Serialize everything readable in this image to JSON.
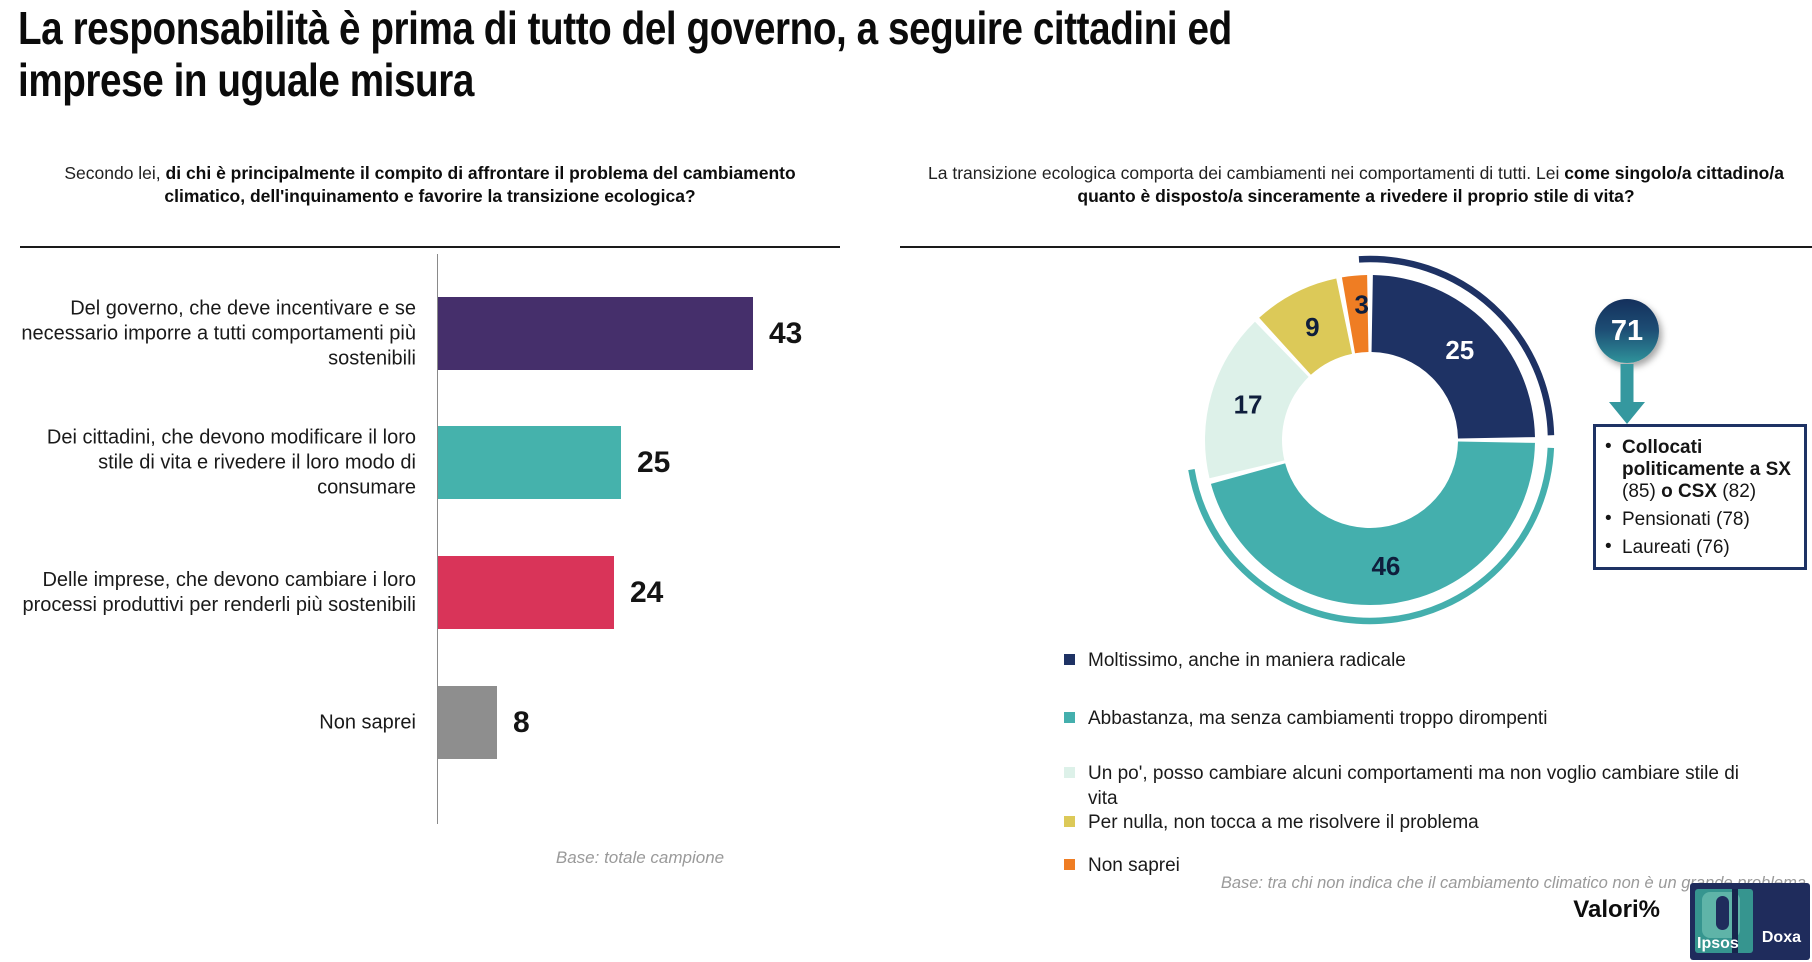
{
  "title": {
    "lines": [
      "La responsabilità è prima di tutto del governo, a seguire cittadini ed",
      "imprese in uguale misura"
    ]
  },
  "chart_data": [
    {
      "type": "bar",
      "orientation": "horizontal",
      "question_prefix": "Secondo lei, ",
      "question_bold": "di chi è principalmente il compito di affrontare il problema del cambiamento climatico, dell'inquinamento e favorire la transizione ecologica?",
      "categories": [
        "Del governo, che deve incentivare e se necessario imporre a tutti comportamenti più sostenibili",
        "Dei cittadini, che devono modificare il loro stile di vita e rivedere il loro modo di consumare",
        "Delle imprese, che devono cambiare i loro processi produttivi per renderli più sostenibili",
        "Non saprei"
      ],
      "values": [
        43,
        25,
        24,
        8
      ],
      "colors": [
        "#452F6B",
        "#45B2AC",
        "#D93459",
        "#8E8E8E"
      ],
      "xlim": [
        0,
        43
      ],
      "grid": false,
      "base_note": "Base: totale campione"
    },
    {
      "type": "pie",
      "subtype": "donut",
      "question_prefix": "La transizione ecologica comporta dei cambiamenti nei comportamenti di tutti. Lei ",
      "question_bold": "come singolo/a cittadino/a quanto è disposto/a sinceramente a rivedere il proprio stile di vita?",
      "labels": [
        "Moltissimo, anche in maniera radicale",
        "Abbastanza, ma senza cambiamenti troppo dirompenti",
        "Un po', posso cambiare alcuni comportamenti ma non voglio cambiare stile di vita",
        "Per nulla, non tocca a me risolvere il problema",
        "Non saprei"
      ],
      "values": [
        25,
        46,
        17,
        9,
        3
      ],
      "colors": [
        "#1E3264",
        "#44AFAD",
        "#DDF1E9",
        "#DCC958",
        "#EF7D23"
      ],
      "slice_label_colors": [
        "#FFFFFF",
        "#0F1E3C",
        "#0F1E3C",
        "#0F1E3C",
        "#0F1E3C"
      ],
      "start_angle_deg": 0,
      "clockwise": true,
      "legend_position": "bottom-left",
      "bracket": {
        "segments": [
          0,
          1
        ],
        "total": 71
      },
      "annotation": {
        "value": "71",
        "bullets": [
          [
            {
              "text": "Collocati politicamente a SX",
              "bold": true
            },
            {
              "text": " (85) ",
              "bold": false
            },
            {
              "text": "o CSX",
              "bold": true
            },
            {
              "text": " (82)",
              "bold": false
            }
          ],
          [
            {
              "text": "Pensionati (78)",
              "bold": false
            }
          ],
          [
            {
              "text": "Laureati (76)",
              "bold": false
            }
          ]
        ]
      },
      "base_note": "Base: tra chi non indica che il cambiamento climatico non è un grande problema"
    }
  ],
  "footer": {
    "values_label": "Valori%",
    "logo": {
      "left": "Ipsos",
      "right": "Doxa"
    }
  }
}
